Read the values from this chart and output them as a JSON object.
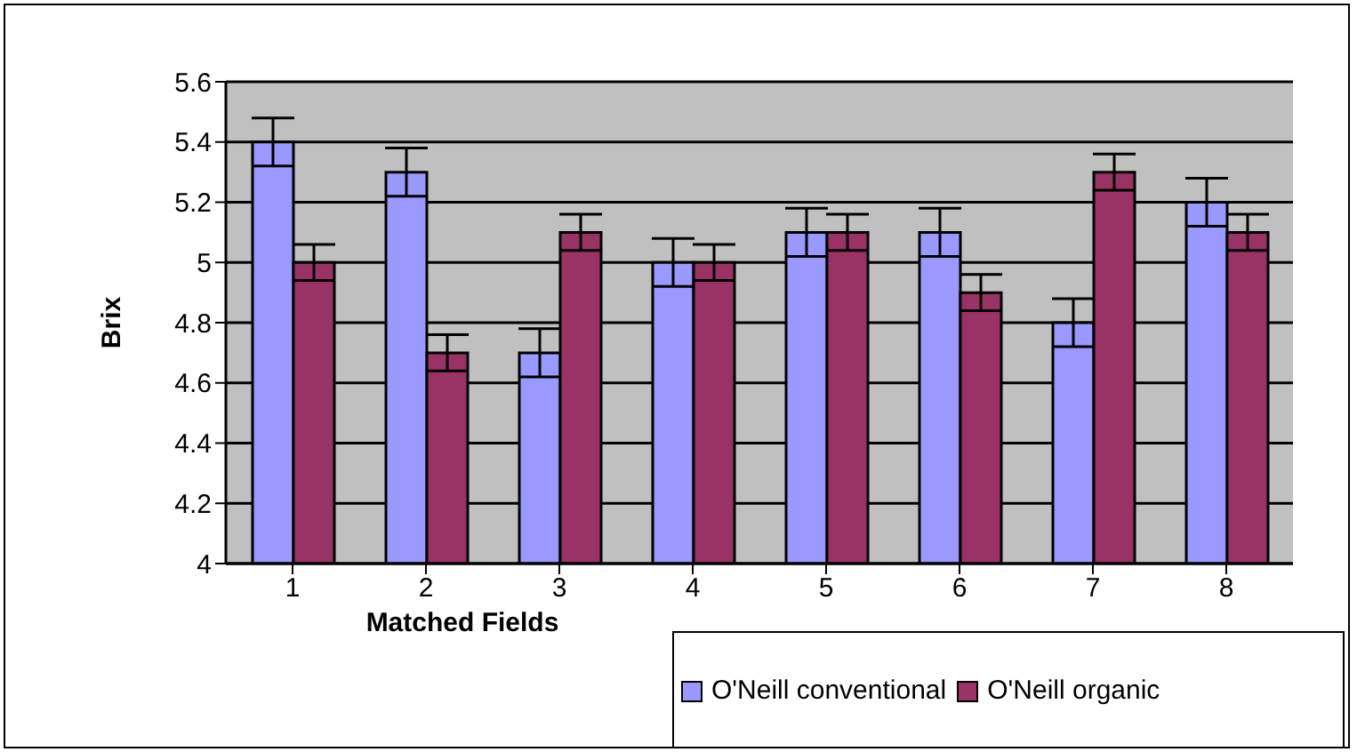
{
  "chart_data": {
    "type": "bar",
    "xlabel": "Matched Fields",
    "ylabel": "Brix",
    "categories": [
      "1",
      "2",
      "3",
      "4",
      "5",
      "6",
      "7",
      "8"
    ],
    "series": [
      {
        "name": "O'Neill conventional",
        "color": "#9999ff",
        "values": [
          5.4,
          5.3,
          4.7,
          5.0,
          5.1,
          5.1,
          4.8,
          5.2
        ],
        "errors": [
          0.08,
          0.08,
          0.08,
          0.08,
          0.08,
          0.08,
          0.08,
          0.08
        ]
      },
      {
        "name": "O'Neill organic",
        "color": "#993366",
        "values": [
          5.0,
          4.7,
          5.1,
          5.0,
          5.1,
          4.9,
          5.3,
          5.1
        ],
        "errors": [
          0.06,
          0.06,
          0.06,
          0.06,
          0.06,
          0.06,
          0.06,
          0.06
        ]
      }
    ],
    "ylim": [
      4,
      5.6
    ],
    "yticks": [
      4,
      4.2,
      4.4,
      4.6,
      4.8,
      5,
      5.2,
      5.4,
      5.6
    ],
    "grid": "y",
    "legend": "bottom right"
  }
}
